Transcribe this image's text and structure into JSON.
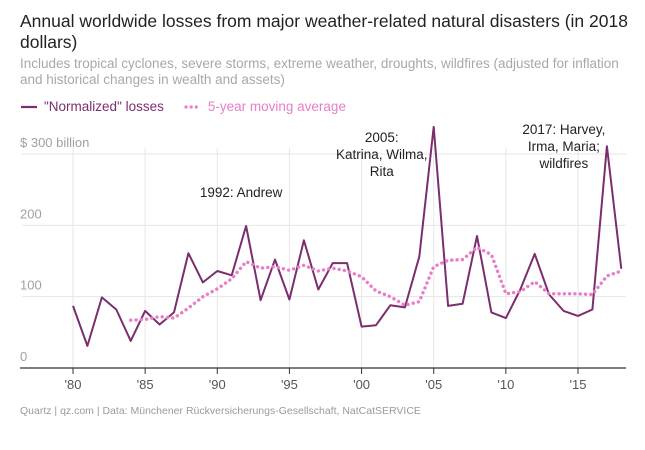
{
  "title": "Annual worldwide losses from major weather-related natural disasters (in 2018 dollars)",
  "subtitle": "Includes tropical cyclones, severe storms, extreme weather, droughts, wildfires (adjusted for inflation and historical changes in wealth and assets)",
  "source": "Quartz | qz.com | Data: Münchener Rückversicherungs-Gesellschaft, NatCatSERVICE",
  "colors": {
    "normalized": "#7b2d6e",
    "moving_average": "#e87ec8",
    "grid": "#e6e6e6",
    "axis": "#333333"
  },
  "chart_data": {
    "type": "line",
    "title": "Annual worldwide losses from major weather-related natural disasters (in 2018 dollars)",
    "ylabel": "",
    "xlabel": "",
    "xlim": [
      1978,
      2018.3
    ],
    "ylim": [
      0,
      300
    ],
    "yticks": [
      {
        "value": 0,
        "label": "0"
      },
      {
        "value": 100,
        "label": "100"
      },
      {
        "value": 200,
        "label": "200"
      },
      {
        "value": 300,
        "label": "$ 300 billion"
      }
    ],
    "xticks": [
      {
        "value": 1980,
        "label": "'80"
      },
      {
        "value": 1985,
        "label": "'85"
      },
      {
        "value": 1990,
        "label": "'90"
      },
      {
        "value": 1995,
        "label": "'95"
      },
      {
        "value": 2000,
        "label": "'00"
      },
      {
        "value": 2005,
        "label": "'05"
      },
      {
        "value": 2010,
        "label": "'10"
      },
      {
        "value": 2015,
        "label": "'15"
      }
    ],
    "series": [
      {
        "name": "\"Normalized\" losses",
        "style": "solid",
        "x": [
          1980,
          1981,
          1982,
          1983,
          1984,
          1985,
          1986,
          1987,
          1988,
          1989,
          1990,
          1991,
          1992,
          1993,
          1994,
          1995,
          1996,
          1997,
          1998,
          1999,
          2000,
          2001,
          2002,
          2003,
          2004,
          2005,
          2006,
          2007,
          2008,
          2009,
          2010,
          2011,
          2012,
          2013,
          2014,
          2015,
          2016,
          2017,
          2018
        ],
        "values": [
          87,
          31,
          99,
          82,
          38,
          80,
          61,
          78,
          161,
          120,
          136,
          130,
          199,
          95,
          152,
          96,
          179,
          110,
          147,
          147,
          58,
          60,
          88,
          85,
          156,
          338,
          87,
          90,
          185,
          78,
          70,
          110,
          160,
          103,
          80,
          73,
          82,
          311,
          139
        ]
      },
      {
        "name": "5-year moving average",
        "style": "dotted",
        "x": [
          1984,
          1985,
          1986,
          1987,
          1988,
          1989,
          1990,
          1991,
          1992,
          1993,
          1994,
          1995,
          1996,
          1997,
          1998,
          1999,
          2000,
          2001,
          2002,
          2003,
          2004,
          2005,
          2006,
          2007,
          2008,
          2009,
          2010,
          2011,
          2012,
          2013,
          2014,
          2015,
          2016,
          2017,
          2018
        ],
        "values": [
          67,
          68,
          72,
          70,
          84,
          100,
          111,
          125,
          149,
          140,
          142,
          137,
          144,
          136,
          140,
          136,
          128,
          108,
          100,
          88,
          93,
          142,
          151,
          152,
          169,
          159,
          104,
          107,
          121,
          104,
          104,
          104,
          103,
          129,
          136
        ]
      }
    ],
    "annotations": [
      {
        "year": 1992,
        "lines": [
          "1992: Andrew"
        ]
      },
      {
        "year": 2005,
        "lines": [
          "2005:",
          "Katrina, Wilma,",
          "Rita"
        ]
      },
      {
        "year": 2017,
        "lines": [
          "2017: Harvey,",
          "Irma, Maria;",
          "wildfires"
        ]
      }
    ]
  }
}
